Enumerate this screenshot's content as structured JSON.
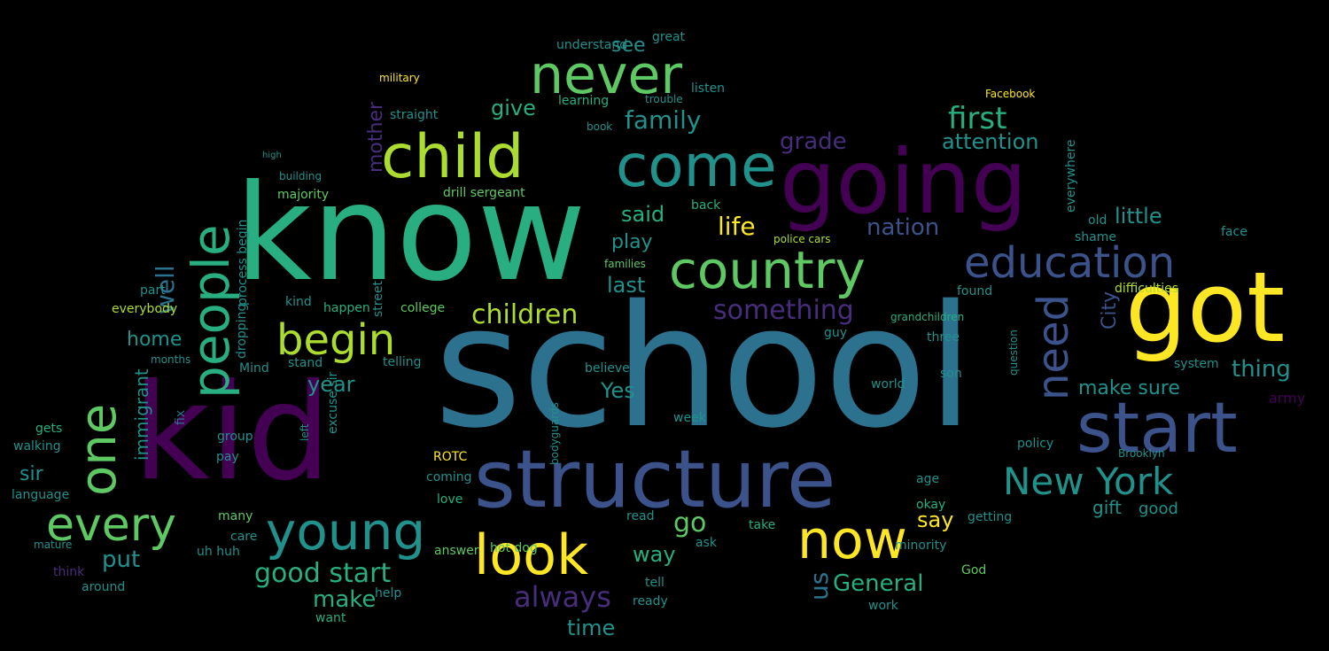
{
  "background": "#000000",
  "palette": {
    "p1": "#440154",
    "p2": "#472d7b",
    "p3": "#3b528b",
    "p4": "#2c728e",
    "p5": "#21918c",
    "p6": "#28ae80",
    "p7": "#5ec962",
    "p8": "#addc30",
    "p9": "#fde725"
  },
  "words": [
    {
      "text": "school",
      "weight": 200,
      "color": "p4"
    },
    {
      "text": "know",
      "weight": 180,
      "color": "p6"
    },
    {
      "text": "kid",
      "weight": 175,
      "color": "p1"
    },
    {
      "text": "going",
      "weight": 125,
      "color": "p1"
    },
    {
      "text": "got",
      "weight": 120,
      "color": "p9"
    },
    {
      "text": "structure",
      "weight": 105,
      "color": "p3"
    },
    {
      "text": "start",
      "weight": 95,
      "color": "p3"
    },
    {
      "text": "child",
      "weight": 80,
      "color": "p8"
    },
    {
      "text": "come",
      "weight": 80,
      "color": "p5"
    },
    {
      "text": "never",
      "weight": 75,
      "color": "p7"
    },
    {
      "text": "people",
      "weight": 72,
      "color": "p6"
    },
    {
      "text": "country",
      "weight": 70,
      "color": "p7"
    },
    {
      "text": "look",
      "weight": 70,
      "color": "p9"
    },
    {
      "text": "now",
      "weight": 68,
      "color": "p9"
    },
    {
      "text": "young",
      "weight": 68,
      "color": "p5"
    },
    {
      "text": "one",
      "weight": 66,
      "color": "p7"
    },
    {
      "text": "every",
      "weight": 58,
      "color": "p7"
    },
    {
      "text": "begin",
      "weight": 56,
      "color": "p8"
    },
    {
      "text": "education",
      "weight": 55,
      "color": "p3"
    },
    {
      "text": "need",
      "weight": 55,
      "color": "p3"
    },
    {
      "text": "New York",
      "weight": 50,
      "color": "p5"
    },
    {
      "text": "children",
      "weight": 34,
      "color": "p8"
    },
    {
      "text": "always",
      "weight": 36,
      "color": "p2"
    },
    {
      "text": "something",
      "weight": 34,
      "color": "p2"
    },
    {
      "text": "family",
      "weight": 32,
      "color": "p5"
    },
    {
      "text": "first",
      "weight": 36,
      "color": "p6"
    },
    {
      "text": "good start",
      "weight": 34,
      "color": "p6"
    },
    {
      "text": "General",
      "weight": 30,
      "color": "p6"
    },
    {
      "text": "life",
      "weight": 32,
      "color": "p9"
    },
    {
      "text": "grade",
      "weight": 28,
      "color": "p2"
    },
    {
      "text": "well",
      "weight": 34,
      "color": "p4"
    },
    {
      "text": "attention",
      "weight": 26,
      "color": "p5"
    },
    {
      "text": "nation",
      "weight": 28,
      "color": "p3"
    },
    {
      "text": "little",
      "weight": 26,
      "color": "p5"
    },
    {
      "text": "make sure",
      "weight": 26,
      "color": "p5"
    },
    {
      "text": "mother",
      "weight": 26,
      "color": "p2"
    },
    {
      "text": "immigrant",
      "weight": 24,
      "color": "p5"
    },
    {
      "text": "thing",
      "weight": 28,
      "color": "p5"
    },
    {
      "text": "say",
      "weight": 26,
      "color": "p9"
    },
    {
      "text": "gift",
      "weight": 22,
      "color": "p5"
    },
    {
      "text": "good",
      "weight": 22,
      "color": "p5"
    },
    {
      "text": "make",
      "weight": 28,
      "color": "p6"
    },
    {
      "text": "put",
      "weight": 30,
      "color": "p5"
    },
    {
      "text": "home",
      "weight": 24,
      "color": "p5"
    },
    {
      "text": "sir",
      "weight": 24,
      "color": "p5"
    },
    {
      "text": "year",
      "weight": 26,
      "color": "p5"
    },
    {
      "text": "Yes",
      "weight": 26,
      "color": "p5"
    },
    {
      "text": "way",
      "weight": 26,
      "color": "p6"
    },
    {
      "text": "go",
      "weight": 34,
      "color": "p7"
    },
    {
      "text": "said",
      "weight": 26,
      "color": "p6"
    },
    {
      "text": "play",
      "weight": 24,
      "color": "p5"
    },
    {
      "text": "last",
      "weight": 26,
      "color": "p5"
    },
    {
      "text": "give",
      "weight": 26,
      "color": "p6"
    },
    {
      "text": "see",
      "weight": 24,
      "color": "p5"
    },
    {
      "text": "time",
      "weight": 26,
      "color": "p5"
    },
    {
      "text": "us",
      "weight": 30,
      "color": "p4"
    },
    {
      "text": "City",
      "weight": 24,
      "color": "p3"
    },
    {
      "text": "army",
      "weight": 18,
      "color": "p1"
    },
    {
      "text": "process begin",
      "weight": 16,
      "color": "p5"
    },
    {
      "text": "dropping",
      "weight": 16,
      "color": "p5"
    },
    {
      "text": "street",
      "weight": 16,
      "color": "p5"
    },
    {
      "text": "straight",
      "weight": 16,
      "color": "p5"
    },
    {
      "text": "drill sergeant",
      "weight": 16,
      "color": "p7"
    },
    {
      "text": "building",
      "weight": 14,
      "color": "p5"
    },
    {
      "text": "majority",
      "weight": 16,
      "color": "p7"
    },
    {
      "text": "ready",
      "weight": 14,
      "color": "p5"
    },
    {
      "text": "tell",
      "weight": 16,
      "color": "p5"
    },
    {
      "text": "answer",
      "weight": 14,
      "color": "p7"
    },
    {
      "text": "want",
      "weight": 16,
      "color": "p6"
    },
    {
      "text": "help",
      "weight": 14,
      "color": "p5"
    },
    {
      "text": "coming",
      "weight": 14,
      "color": "p5"
    },
    {
      "text": "love",
      "weight": 16,
      "color": "p6"
    },
    {
      "text": "ROTC",
      "weight": 14,
      "color": "p9"
    },
    {
      "text": "college",
      "weight": 14,
      "color": "p7"
    },
    {
      "text": "telling",
      "weight": 14,
      "color": "p5"
    },
    {
      "text": "happen",
      "weight": 14,
      "color": "p6"
    },
    {
      "text": "kind",
      "weight": 14,
      "color": "p5"
    },
    {
      "text": "stand",
      "weight": 14,
      "color": "p5"
    },
    {
      "text": "Mind",
      "weight": 14,
      "color": "p5"
    },
    {
      "text": "part",
      "weight": 14,
      "color": "p5"
    },
    {
      "text": "everybody",
      "weight": 14,
      "color": "p8"
    },
    {
      "text": "language",
      "weight": 14,
      "color": "p5"
    },
    {
      "text": "walking",
      "weight": 14,
      "color": "p5"
    },
    {
      "text": "gets",
      "weight": 14,
      "color": "p6"
    },
    {
      "text": "many",
      "weight": 16,
      "color": "p7"
    },
    {
      "text": "care",
      "weight": 14,
      "color": "p5"
    },
    {
      "text": "pay",
      "weight": 14,
      "color": "p5"
    },
    {
      "text": "group",
      "weight": 16,
      "color": "p5"
    },
    {
      "text": "fix",
      "weight": 16,
      "color": "p4"
    },
    {
      "text": "excuse sir",
      "weight": 14,
      "color": "p5"
    },
    {
      "text": "left",
      "weight": 12,
      "color": "p5"
    },
    {
      "text": "uh huh",
      "weight": 14,
      "color": "p5"
    },
    {
      "text": "around",
      "weight": 16,
      "color": "p5"
    },
    {
      "text": "think",
      "weight": 14,
      "color": "p2"
    },
    {
      "text": "hot dog",
      "weight": 16,
      "color": "p7"
    },
    {
      "text": "bodyguards",
      "weight": 14,
      "color": "p5"
    },
    {
      "text": "believe",
      "weight": 14,
      "color": "p5"
    },
    {
      "text": "back",
      "weight": 16,
      "color": "p6"
    },
    {
      "text": "week",
      "weight": 14,
      "color": "p5"
    },
    {
      "text": "families",
      "weight": 14,
      "color": "p7"
    },
    {
      "text": "understand",
      "weight": 14,
      "color": "p5"
    },
    {
      "text": "great",
      "weight": 14,
      "color": "p5"
    },
    {
      "text": "listen",
      "weight": 14,
      "color": "p5"
    },
    {
      "text": "learning",
      "weight": 14,
      "color": "p6"
    },
    {
      "text": "book",
      "weight": 12,
      "color": "p5"
    },
    {
      "text": "police cars",
      "weight": 12,
      "color": "p8"
    },
    {
      "text": "read",
      "weight": 14,
      "color": "p5"
    },
    {
      "text": "take",
      "weight": 16,
      "color": "p6"
    },
    {
      "text": "ask",
      "weight": 14,
      "color": "p5"
    },
    {
      "text": "minority",
      "weight": 14,
      "color": "p5"
    },
    {
      "text": "God",
      "weight": 16,
      "color": "p7"
    },
    {
      "text": "work",
      "weight": 16,
      "color": "p5"
    },
    {
      "text": "okay",
      "weight": 14,
      "color": "p6"
    },
    {
      "text": "age",
      "weight": 14,
      "color": "p5"
    },
    {
      "text": "son",
      "weight": 14,
      "color": "p5"
    },
    {
      "text": "three",
      "weight": 14,
      "color": "p5"
    },
    {
      "text": "found",
      "weight": 14,
      "color": "p5"
    },
    {
      "text": "world",
      "weight": 14,
      "color": "p5"
    },
    {
      "text": "getting",
      "weight": 14,
      "color": "p5"
    },
    {
      "text": "policy",
      "weight": 14,
      "color": "p5"
    },
    {
      "text": "system",
      "weight": 14,
      "color": "p5"
    },
    {
      "text": "difficulties",
      "weight": 14,
      "color": "p8"
    },
    {
      "text": "shame",
      "weight": 14,
      "color": "p5"
    },
    {
      "text": "old",
      "weight": 14,
      "color": "p5"
    },
    {
      "text": "face",
      "weight": 14,
      "color": "p5"
    },
    {
      "text": "everywhere",
      "weight": 14,
      "color": "p5"
    },
    {
      "text": "question",
      "weight": 14,
      "color": "p5"
    },
    {
      "text": "grandchildren",
      "weight": 12,
      "color": "p6"
    },
    {
      "text": "guy",
      "weight": 14,
      "color": "p5"
    },
    {
      "text": "Facebook",
      "weight": 12,
      "color": "p9"
    },
    {
      "text": "military",
      "weight": 12,
      "color": "p9"
    },
    {
      "text": "trouble",
      "weight": 12,
      "color": "p5"
    },
    {
      "text": "months",
      "weight": 12,
      "color": "p5"
    },
    {
      "text": "Brooklyn",
      "weight": 12,
      "color": "p5"
    },
    {
      "text": "mature",
      "weight": 12,
      "color": "p5"
    },
    {
      "text": "high",
      "weight": 12,
      "color": "p5"
    }
  ]
}
